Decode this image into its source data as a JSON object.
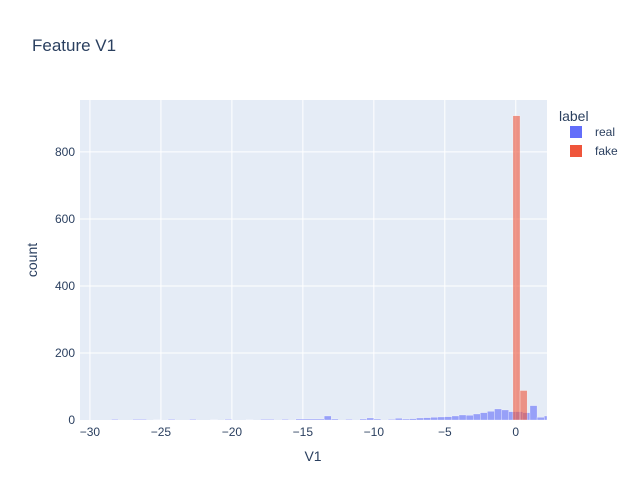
{
  "chart_data": {
    "type": "histogram",
    "title": "Feature V1",
    "xlabel": "V1",
    "ylabel": "count",
    "xlim": [
      -30.7,
      2.2
    ],
    "ylim": [
      0,
      955
    ],
    "x_ticks": [
      -30,
      -25,
      -20,
      -15,
      -10,
      -5,
      0
    ],
    "x_tick_labels": [
      "−30",
      "−25",
      "−20",
      "−15",
      "−10",
      "−5",
      "0"
    ],
    "y_ticks": [
      0,
      200,
      400,
      600,
      800
    ],
    "y_tick_labels": [
      "0",
      "200",
      "400",
      "600",
      "800"
    ],
    "grid": true,
    "barmode": "overlay",
    "legend": {
      "title": "label",
      "placement": "top-right"
    },
    "series": [
      {
        "name": "real",
        "color": "#636efa",
        "bins": [
          {
            "x0": -28.5,
            "x1": -28.0,
            "count": 2
          },
          {
            "x0": -27.0,
            "x1": -26.0,
            "count": 2
          },
          {
            "x0": -25.5,
            "x1": -25.0,
            "count": 1
          },
          {
            "x0": -24.5,
            "x1": -24.0,
            "count": 2
          },
          {
            "x0": -23.0,
            "x1": -22.5,
            "count": 2
          },
          {
            "x0": -21.5,
            "x1": -21.0,
            "count": 1
          },
          {
            "x0": -20.5,
            "x1": -20.0,
            "count": 2
          },
          {
            "x0": -19.0,
            "x1": -18.5,
            "count": 1
          },
          {
            "x0": -18.0,
            "x1": -17.0,
            "count": 2
          },
          {
            "x0": -16.5,
            "x1": -16.0,
            "count": 2
          },
          {
            "x0": -15.5,
            "x1": -13.5,
            "count": 3
          },
          {
            "x0": -13.5,
            "x1": -13.0,
            "count": 12
          },
          {
            "x0": -13.0,
            "x1": -12.5,
            "count": 3
          },
          {
            "x0": -12.0,
            "x1": -11.5,
            "count": 2
          },
          {
            "x0": -11.0,
            "x1": -10.5,
            "count": 3
          },
          {
            "x0": -10.5,
            "x1": -10.0,
            "count": 6
          },
          {
            "x0": -10.0,
            "x1": -9.5,
            "count": 3
          },
          {
            "x0": -9.0,
            "x1": -8.5,
            "count": 2
          },
          {
            "x0": -8.5,
            "x1": -8.0,
            "count": 5
          },
          {
            "x0": -8.0,
            "x1": -7.5,
            "count": 3
          },
          {
            "x0": -7.5,
            "x1": -7.0,
            "count": 4
          },
          {
            "x0": -7.0,
            "x1": -6.5,
            "count": 6
          },
          {
            "x0": -6.5,
            "x1": -6.0,
            "count": 7
          },
          {
            "x0": -6.0,
            "x1": -5.5,
            "count": 8
          },
          {
            "x0": -5.5,
            "x1": -5.0,
            "count": 9
          },
          {
            "x0": -5.0,
            "x1": -4.5,
            "count": 10
          },
          {
            "x0": -4.5,
            "x1": -4.0,
            "count": 12
          },
          {
            "x0": -4.0,
            "x1": -3.5,
            "count": 15
          },
          {
            "x0": -3.5,
            "x1": -3.0,
            "count": 14
          },
          {
            "x0": -3.0,
            "x1": -2.5,
            "count": 18
          },
          {
            "x0": -2.5,
            "x1": -2.0,
            "count": 22
          },
          {
            "x0": -2.0,
            "x1": -1.5,
            "count": 26
          },
          {
            "x0": -1.5,
            "x1": -1.0,
            "count": 33
          },
          {
            "x0": -1.0,
            "x1": -0.5,
            "count": 30
          },
          {
            "x0": -0.5,
            "x1": 0.0,
            "count": 25
          },
          {
            "x0": 0.0,
            "x1": 0.5,
            "count": 25
          },
          {
            "x0": 0.5,
            "x1": 1.0,
            "count": 22
          },
          {
            "x0": 1.0,
            "x1": 1.5,
            "count": 43
          },
          {
            "x0": 1.5,
            "x1": 2.0,
            "count": 8
          },
          {
            "x0": 2.0,
            "x1": 2.2,
            "count": 12
          }
        ]
      },
      {
        "name": "fake",
        "color": "#ef553b",
        "bins": [
          {
            "x0": -0.2,
            "x1": 0.3,
            "count": 908
          },
          {
            "x0": 0.3,
            "x1": 0.8,
            "count": 88
          }
        ]
      }
    ]
  }
}
